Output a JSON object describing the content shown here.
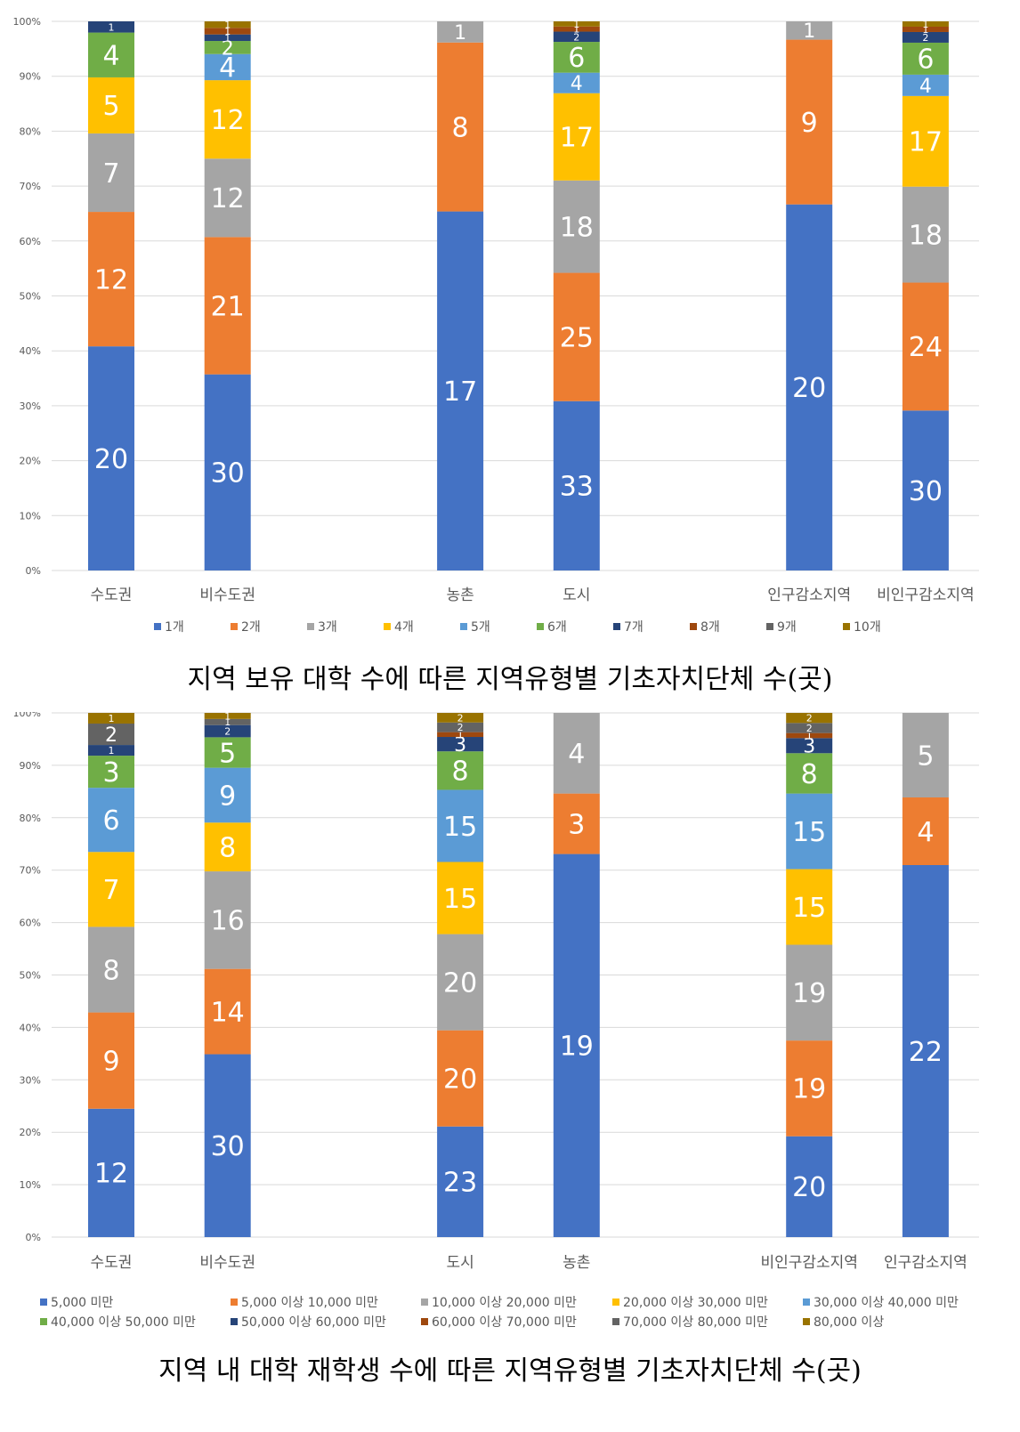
{
  "chart_data": [
    {
      "type": "bar",
      "stacked": "percent",
      "caption": "지역 보유 대학 수에 따른 지역유형별 기초자치단체 수(곳)",
      "categories": [
        "수도권",
        "비수도권",
        "",
        "농촌",
        "도시",
        "",
        "인구감소지역",
        "비인구감소지역"
      ],
      "ylim": [
        0,
        100
      ],
      "yticks": [
        "0%",
        "10%",
        "20%",
        "30%",
        "40%",
        "50%",
        "60%",
        "70%",
        "80%",
        "90%",
        "100%"
      ],
      "grid": true,
      "legend_position": "bottom",
      "series": [
        {
          "name": "1개",
          "color": "#4472C4",
          "values": [
            20,
            30,
            null,
            17,
            33,
            null,
            20,
            30
          ]
        },
        {
          "name": "2개",
          "color": "#ED7D31",
          "values": [
            12,
            21,
            null,
            8,
            25,
            null,
            9,
            24
          ]
        },
        {
          "name": "3개",
          "color": "#A5A5A5",
          "values": [
            7,
            12,
            null,
            1,
            18,
            null,
            1,
            18
          ]
        },
        {
          "name": "4개",
          "color": "#FFC000",
          "values": [
            5,
            12,
            null,
            0,
            17,
            null,
            0,
            17
          ]
        },
        {
          "name": "5개",
          "color": "#5B9BD5",
          "values": [
            0,
            4,
            null,
            0,
            4,
            null,
            0,
            4
          ]
        },
        {
          "name": "6개",
          "color": "#70AD47",
          "values": [
            4,
            2,
            null,
            0,
            6,
            null,
            0,
            6
          ]
        },
        {
          "name": "7개",
          "color": "#264478",
          "values": [
            1,
            1,
            null,
            0,
            2,
            null,
            0,
            2
          ]
        },
        {
          "name": "8개",
          "color": "#9E480E",
          "values": [
            0,
            1,
            null,
            0,
            1,
            null,
            0,
            1
          ]
        },
        {
          "name": "9개",
          "color": "#636363",
          "values": [
            0,
            0,
            null,
            0,
            0,
            null,
            0,
            0
          ]
        },
        {
          "name": "10개",
          "color": "#997300",
          "values": [
            0,
            1,
            null,
            0,
            1,
            null,
            0,
            1
          ]
        }
      ]
    },
    {
      "type": "bar",
      "stacked": "percent",
      "caption": "지역 내 대학 재학생 수에 따른 지역유형별 기초자치단체 수(곳)",
      "categories": [
        "수도권",
        "비수도권",
        "",
        "도시",
        "농촌",
        "",
        "비인구감소지역",
        "인구감소지역"
      ],
      "ylim": [
        0,
        100
      ],
      "yticks": [
        "0%",
        "10%",
        "20%",
        "30%",
        "40%",
        "50%",
        "60%",
        "70%",
        "80%",
        "90%",
        "100%"
      ],
      "grid": true,
      "legend_position": "bottom",
      "series": [
        {
          "name": "5,000 미만",
          "color": "#4472C4",
          "values": [
            12,
            30,
            null,
            23,
            19,
            null,
            20,
            22
          ]
        },
        {
          "name": "5,000 이상 10,000 미만",
          "color": "#ED7D31",
          "values": [
            9,
            14,
            null,
            20,
            3,
            null,
            19,
            4
          ]
        },
        {
          "name": "10,000 이상 20,000 미만",
          "color": "#A5A5A5",
          "values": [
            8,
            16,
            null,
            20,
            4,
            null,
            19,
            5
          ]
        },
        {
          "name": "20,000 이상 30,000 미만",
          "color": "#FFC000",
          "values": [
            7,
            8,
            null,
            15,
            0,
            null,
            15,
            0
          ]
        },
        {
          "name": "30,000 이상 40,000 미만",
          "color": "#5B9BD5",
          "values": [
            6,
            9,
            null,
            15,
            0,
            null,
            15,
            0
          ]
        },
        {
          "name": "40,000 이상 50,000 미만",
          "color": "#70AD47",
          "values": [
            3,
            5,
            null,
            8,
            0,
            null,
            8,
            0
          ]
        },
        {
          "name": "50,000 이상 60,000 미만",
          "color": "#264478",
          "values": [
            1,
            2,
            null,
            3,
            0,
            null,
            3,
            0
          ]
        },
        {
          "name": "60,000 이상 70,000 미만",
          "color": "#9E480E",
          "values": [
            0,
            0,
            null,
            1,
            0,
            null,
            1,
            0
          ]
        },
        {
          "name": "70,000 이상 80,000 미만",
          "color": "#636363",
          "values": [
            2,
            1,
            null,
            2,
            0,
            null,
            2,
            0
          ]
        },
        {
          "name": "80,000 이상",
          "color": "#997300",
          "values": [
            1,
            1,
            null,
            2,
            0,
            null,
            2,
            0
          ]
        }
      ]
    }
  ]
}
